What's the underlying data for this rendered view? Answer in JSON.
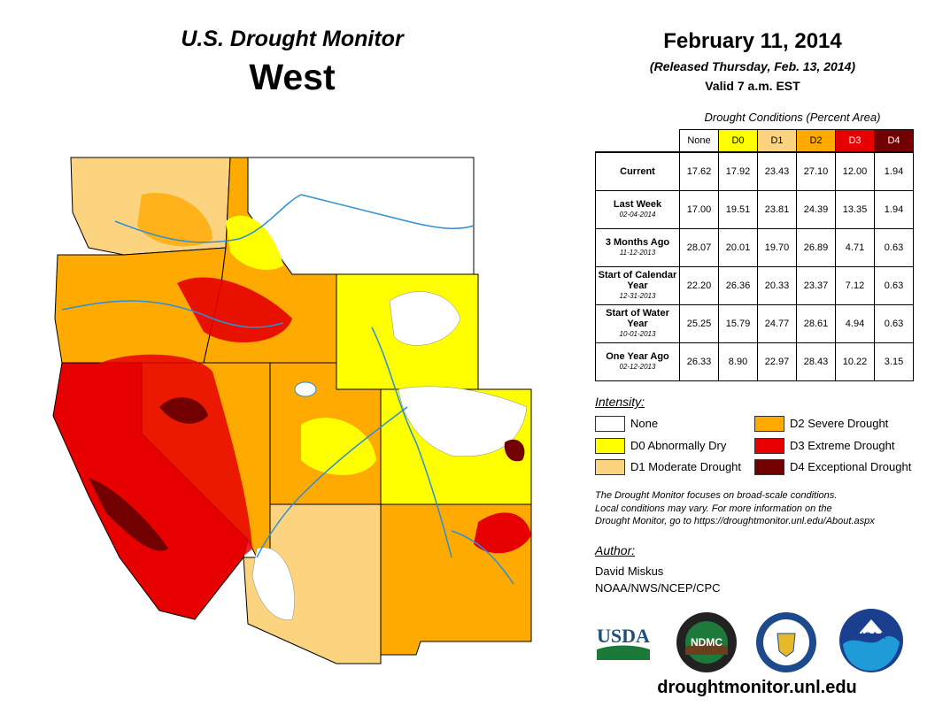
{
  "header": {
    "title_top": "U.S. Drought Monitor",
    "title_region": "West",
    "date": "February 11, 2014",
    "released": "(Released Thursday, Feb. 13, 2014)",
    "valid": "Valid 7 a.m. EST"
  },
  "stats": {
    "caption": "Drought Conditions (Percent Area)",
    "columns": [
      "None",
      "D0",
      "D1",
      "D2",
      "D3",
      "D4"
    ],
    "column_colors": [
      "#ffffff",
      "#ffff00",
      "#fcd37f",
      "#ffaa00",
      "#e60000",
      "#730000"
    ],
    "rows": [
      {
        "label": "Current",
        "sub": "",
        "values": [
          "17.62",
          "17.92",
          "23.43",
          "27.10",
          "12.00",
          "1.94"
        ]
      },
      {
        "label": "Last Week",
        "sub": "02-04-2014",
        "values": [
          "17.00",
          "19.51",
          "23.81",
          "24.39",
          "13.35",
          "1.94"
        ]
      },
      {
        "label": "3 Months Ago",
        "sub": "11-12-2013",
        "values": [
          "28.07",
          "20.01",
          "19.70",
          "26.89",
          "4.71",
          "0.63"
        ]
      },
      {
        "label": "Start of Calendar Year",
        "sub": "12-31-2013",
        "values": [
          "22.20",
          "26.36",
          "20.33",
          "23.37",
          "7.12",
          "0.63"
        ]
      },
      {
        "label": "Start of Water Year",
        "sub": "10-01-2013",
        "values": [
          "25.25",
          "15.79",
          "24.77",
          "28.61",
          "4.94",
          "0.63"
        ]
      },
      {
        "label": "One Year Ago",
        "sub": "02-12-2013",
        "values": [
          "26.33",
          "8.90",
          "22.97",
          "28.43",
          "10.22",
          "3.15"
        ]
      }
    ]
  },
  "legend": {
    "title": "Intensity:",
    "items": [
      {
        "label": "None",
        "color": "#ffffff"
      },
      {
        "label": "D0 Abnormally Dry",
        "color": "#ffff00"
      },
      {
        "label": "D1 Moderate Drought",
        "color": "#fcd37f"
      },
      {
        "label": "D2 Severe Drought",
        "color": "#ffaa00"
      },
      {
        "label": "D3 Extreme Drought",
        "color": "#e60000"
      },
      {
        "label": "D4 Exceptional Drought",
        "color": "#730000"
      }
    ]
  },
  "note": {
    "line1": "The Drought Monitor focuses on broad-scale conditions.",
    "line2": "Local conditions may vary. For more information on the",
    "line3": "Drought Monitor, go to https://droughtmonitor.unl.edu/About.aspx"
  },
  "author": {
    "heading": "Author:",
    "name": "David Miskus",
    "org": "NOAA/NWS/NCEP/CPC"
  },
  "logos": {
    "usda": "USDA",
    "ndmc": "NDMC",
    "noaa": "NOAA"
  },
  "footer": {
    "url": "droughtmonitor.unl.edu"
  }
}
